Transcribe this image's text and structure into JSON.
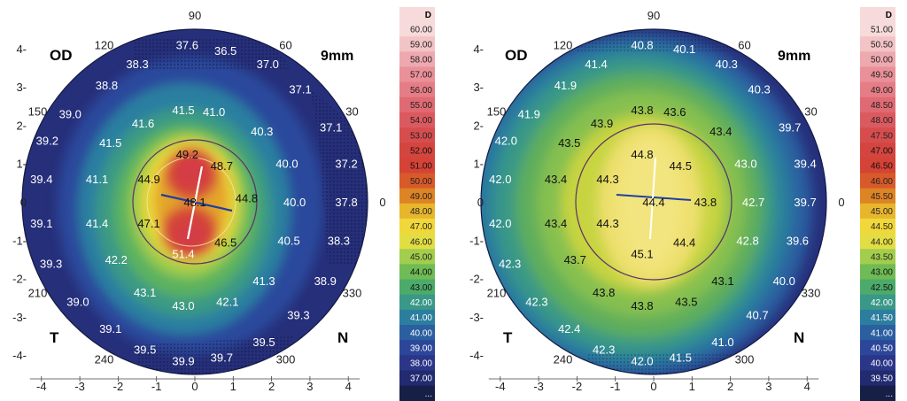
{
  "chart_data": [
    {
      "type": "heatmap",
      "subtype": "corneal-topography-axial-map",
      "eye": "OD",
      "zone": "9mm",
      "left_label": "T",
      "right_label": "N",
      "x_ticks": [
        "-4",
        "-3",
        "-2",
        "-1",
        "0",
        "1",
        "2",
        "3",
        "4"
      ],
      "y_ticks": [
        "4-",
        "3-",
        "2-",
        "1-",
        "0",
        "-1-",
        "-2-",
        "-3-",
        "-4-"
      ],
      "angle_labels": [
        "90",
        "120",
        "60",
        "150",
        "30",
        "0",
        "210",
        "330",
        "240",
        "300"
      ],
      "colorscale": {
        "unit": "D",
        "labels": [
          "60.00",
          "59.00",
          "58.00",
          "57.00",
          "56.00",
          "55.00",
          "54.00",
          "53.00",
          "52.00",
          "51.00",
          "50.00",
          "49.00",
          "48.00",
          "47.00",
          "46.00",
          "45.00",
          "44.00",
          "43.00",
          "42.00",
          "41.00",
          "40.00",
          "39.00",
          "38.00",
          "37.00",
          "..."
        ],
        "colors": [
          "#f7dada",
          "#f3c4c6",
          "#eea9b0",
          "#e99099",
          "#e57d86",
          "#e06a73",
          "#db5a60",
          "#d74d4e",
          "#d4453f",
          "#d54236",
          "#d85a2a",
          "#dd8425",
          "#e8b62d",
          "#f0d83a",
          "#e3dd44",
          "#a3cd4c",
          "#6fbb55",
          "#4caa6a",
          "#399887",
          "#2c7e9e",
          "#2b5fa0",
          "#2c4799",
          "#2b3688",
          "#222a70",
          "#161f46"
        ]
      },
      "readings": [
        {
          "value": "37.6",
          "x": -0.2,
          "y": 4.1,
          "dark": false
        },
        {
          "value": "36.5",
          "x": 0.8,
          "y": 3.95,
          "dark": false
        },
        {
          "value": "38.3",
          "x": -1.5,
          "y": 3.6,
          "dark": false
        },
        {
          "value": "37.0",
          "x": 1.9,
          "y": 3.6,
          "dark": false
        },
        {
          "value": "38.8",
          "x": -2.3,
          "y": 3.05,
          "dark": false
        },
        {
          "value": "37.1",
          "x": 2.75,
          "y": 2.95,
          "dark": false
        },
        {
          "value": "39.0",
          "x": -3.25,
          "y": 2.3,
          "dark": false
        },
        {
          "value": "41.5",
          "x": -0.3,
          "y": 2.4,
          "dark": false
        },
        {
          "value": "41.0",
          "x": 0.5,
          "y": 2.35,
          "dark": false
        },
        {
          "value": "41.6",
          "x": -1.35,
          "y": 2.05,
          "dark": false
        },
        {
          "value": "37.1",
          "x": 3.55,
          "y": 1.95,
          "dark": false
        },
        {
          "value": "40.3",
          "x": 1.75,
          "y": 1.85,
          "dark": false
        },
        {
          "value": "39.2",
          "x": -3.85,
          "y": 1.6,
          "dark": false
        },
        {
          "value": "41.5",
          "x": -2.2,
          "y": 1.55,
          "dark": false
        },
        {
          "value": "49.2",
          "x": -0.2,
          "y": 1.25,
          "dark": true
        },
        {
          "value": "48.7",
          "x": 0.7,
          "y": 0.95,
          "dark": true
        },
        {
          "value": "40.0",
          "x": 2.4,
          "y": 1.0,
          "dark": false
        },
        {
          "value": "37.2",
          "x": 3.95,
          "y": 1.0,
          "dark": false
        },
        {
          "value": "39.4",
          "x": -4.0,
          "y": 0.6,
          "dark": false
        },
        {
          "value": "41.1",
          "x": -2.55,
          "y": 0.6,
          "dark": false
        },
        {
          "value": "44.9",
          "x": -1.2,
          "y": 0.6,
          "dark": true
        },
        {
          "value": "44.8",
          "x": 1.35,
          "y": 0.1,
          "dark": true
        },
        {
          "value": "48.1",
          "x": 0.0,
          "y": 0.0,
          "dark": true
        },
        {
          "value": "40.0",
          "x": 2.6,
          "y": 0.0,
          "dark": false
        },
        {
          "value": "37.8",
          "x": 3.95,
          "y": 0.0,
          "dark": false
        },
        {
          "value": "39.1",
          "x": -4.0,
          "y": -0.55,
          "dark": false
        },
        {
          "value": "41.4",
          "x": -2.55,
          "y": -0.55,
          "dark": false
        },
        {
          "value": "47.1",
          "x": -1.2,
          "y": -0.55,
          "dark": true
        },
        {
          "value": "46.5",
          "x": 0.8,
          "y": -1.05,
          "dark": true
        },
        {
          "value": "40.5",
          "x": 2.45,
          "y": -1.0,
          "dark": false
        },
        {
          "value": "38.3",
          "x": 3.75,
          "y": -1.0,
          "dark": false
        },
        {
          "value": "51.4",
          "x": -0.3,
          "y": -1.35,
          "dark": false
        },
        {
          "value": "39.3",
          "x": -3.75,
          "y": -1.6,
          "dark": false
        },
        {
          "value": "42.2",
          "x": -2.05,
          "y": -1.5,
          "dark": false
        },
        {
          "value": "41.3",
          "x": 1.8,
          "y": -2.05,
          "dark": false
        },
        {
          "value": "38.9",
          "x": 3.4,
          "y": -2.05,
          "dark": false
        },
        {
          "value": "43.1",
          "x": -1.3,
          "y": -2.35,
          "dark": false
        },
        {
          "value": "43.0",
          "x": -0.3,
          "y": -2.7,
          "dark": false
        },
        {
          "value": "42.1",
          "x": 0.85,
          "y": -2.6,
          "dark": false
        },
        {
          "value": "39.0",
          "x": -3.05,
          "y": -2.6,
          "dark": false
        },
        {
          "value": "39.3",
          "x": 2.7,
          "y": -2.95,
          "dark": false
        },
        {
          "value": "39.1",
          "x": -2.2,
          "y": -3.3,
          "dark": false
        },
        {
          "value": "39.5",
          "x": 1.8,
          "y": -3.65,
          "dark": false
        },
        {
          "value": "39.5",
          "x": -1.3,
          "y": -3.85,
          "dark": false
        },
        {
          "value": "39.9",
          "x": -0.3,
          "y": -4.15,
          "dark": false
        },
        {
          "value": "39.7",
          "x": 0.7,
          "y": -4.05,
          "dark": false
        }
      ]
    },
    {
      "type": "heatmap",
      "subtype": "corneal-topography-axial-map",
      "eye": "OD",
      "zone": "9mm",
      "left_label": "T",
      "right_label": "N",
      "x_ticks": [
        "-4",
        "-3",
        "-2",
        "-1",
        "0",
        "1",
        "2",
        "3",
        "4"
      ],
      "y_ticks": [
        "4-",
        "3-",
        "2-",
        "1-",
        "0",
        "-1-",
        "-2-",
        "-3-",
        "-4-"
      ],
      "angle_labels": [
        "90",
        "120",
        "60",
        "150",
        "30",
        "0",
        "210",
        "330",
        "240",
        "300"
      ],
      "colorscale": {
        "unit": "D",
        "labels": [
          "51.00",
          "50.50",
          "50.00",
          "49.50",
          "49.00",
          "48.50",
          "48.00",
          "47.50",
          "47.00",
          "46.50",
          "46.00",
          "45.50",
          "45.00",
          "44.50",
          "44.00",
          "43.50",
          "43.00",
          "42.50",
          "42.00",
          "41.50",
          "41.00",
          "40.50",
          "40.00",
          "39.50",
          "..."
        ],
        "colors": [
          "#f7dada",
          "#f3c4c6",
          "#eea9b0",
          "#e99099",
          "#e57d86",
          "#e06a73",
          "#db5a60",
          "#d74d4e",
          "#d4453f",
          "#d54236",
          "#d85a2a",
          "#dd8425",
          "#e8b62d",
          "#f0d83a",
          "#e3dd44",
          "#a3cd4c",
          "#6fbb55",
          "#4caa6a",
          "#399887",
          "#2c7e9e",
          "#2b5fa0",
          "#2c4799",
          "#2b3688",
          "#222a70",
          "#161f46"
        ]
      },
      "readings": [
        {
          "value": "40.8",
          "x": -0.3,
          "y": 4.1,
          "dark": false
        },
        {
          "value": "40.1",
          "x": 0.8,
          "y": 4.0,
          "dark": false
        },
        {
          "value": "41.4",
          "x": -1.5,
          "y": 3.6,
          "dark": false
        },
        {
          "value": "40.3",
          "x": 1.9,
          "y": 3.6,
          "dark": false
        },
        {
          "value": "41.9",
          "x": -2.3,
          "y": 3.05,
          "dark": false
        },
        {
          "value": "40.3",
          "x": 2.75,
          "y": 2.95,
          "dark": false
        },
        {
          "value": "41.9",
          "x": -3.25,
          "y": 2.3,
          "dark": false
        },
        {
          "value": "43.8",
          "x": -0.3,
          "y": 2.4,
          "dark": true
        },
        {
          "value": "43.6",
          "x": 0.55,
          "y": 2.35,
          "dark": true
        },
        {
          "value": "43.9",
          "x": -1.35,
          "y": 2.05,
          "dark": true
        },
        {
          "value": "39.7",
          "x": 3.55,
          "y": 1.95,
          "dark": false
        },
        {
          "value": "43.4",
          "x": 1.75,
          "y": 1.85,
          "dark": true
        },
        {
          "value": "42.0",
          "x": -3.85,
          "y": 1.6,
          "dark": false
        },
        {
          "value": "43.5",
          "x": -2.2,
          "y": 1.55,
          "dark": true
        },
        {
          "value": "44.8",
          "x": -0.3,
          "y": 1.25,
          "dark": true
        },
        {
          "value": "44.5",
          "x": 0.7,
          "y": 0.95,
          "dark": true
        },
        {
          "value": "43.0",
          "x": 2.4,
          "y": 1.0,
          "dark": false
        },
        {
          "value": "39.4",
          "x": 3.95,
          "y": 1.0,
          "dark": false
        },
        {
          "value": "42.0",
          "x": -4.0,
          "y": 0.6,
          "dark": false
        },
        {
          "value": "43.4",
          "x": -2.55,
          "y": 0.6,
          "dark": true
        },
        {
          "value": "44.3",
          "x": -1.2,
          "y": 0.6,
          "dark": true
        },
        {
          "value": "43.8",
          "x": 1.35,
          "y": 0.0,
          "dark": true
        },
        {
          "value": "44.4",
          "x": 0.0,
          "y": 0.0,
          "dark": true
        },
        {
          "value": "42.7",
          "x": 2.6,
          "y": 0.0,
          "dark": false
        },
        {
          "value": "39.7",
          "x": 3.95,
          "y": 0.0,
          "dark": false
        },
        {
          "value": "42.0",
          "x": -4.0,
          "y": -0.55,
          "dark": false
        },
        {
          "value": "43.4",
          "x": -2.55,
          "y": -0.55,
          "dark": true
        },
        {
          "value": "44.3",
          "x": -1.2,
          "y": -0.55,
          "dark": true
        },
        {
          "value": "44.4",
          "x": 0.8,
          "y": -1.05,
          "dark": true
        },
        {
          "value": "42.8",
          "x": 2.45,
          "y": -1.0,
          "dark": false
        },
        {
          "value": "39.6",
          "x": 3.75,
          "y": -1.0,
          "dark": false
        },
        {
          "value": "45.1",
          "x": -0.3,
          "y": -1.35,
          "dark": true
        },
        {
          "value": "42.3",
          "x": -3.75,
          "y": -1.6,
          "dark": false
        },
        {
          "value": "43.7",
          "x": -2.05,
          "y": -1.5,
          "dark": true
        },
        {
          "value": "43.1",
          "x": 1.8,
          "y": -2.05,
          "dark": true
        },
        {
          "value": "40.0",
          "x": 3.4,
          "y": -2.05,
          "dark": false
        },
        {
          "value": "43.8",
          "x": -1.3,
          "y": -2.35,
          "dark": true
        },
        {
          "value": "43.8",
          "x": -0.3,
          "y": -2.7,
          "dark": true
        },
        {
          "value": "43.5",
          "x": 0.85,
          "y": -2.6,
          "dark": true
        },
        {
          "value": "42.3",
          "x": -3.05,
          "y": -2.6,
          "dark": false
        },
        {
          "value": "40.7",
          "x": 2.7,
          "y": -2.95,
          "dark": false
        },
        {
          "value": "42.4",
          "x": -2.2,
          "y": -3.3,
          "dark": false
        },
        {
          "value": "41.0",
          "x": 1.8,
          "y": -3.65,
          "dark": false
        },
        {
          "value": "42.3",
          "x": -1.3,
          "y": -3.85,
          "dark": false
        },
        {
          "value": "42.0",
          "x": -0.3,
          "y": -4.15,
          "dark": false
        },
        {
          "value": "41.5",
          "x": 0.7,
          "y": -4.05,
          "dark": false
        }
      ]
    }
  ]
}
